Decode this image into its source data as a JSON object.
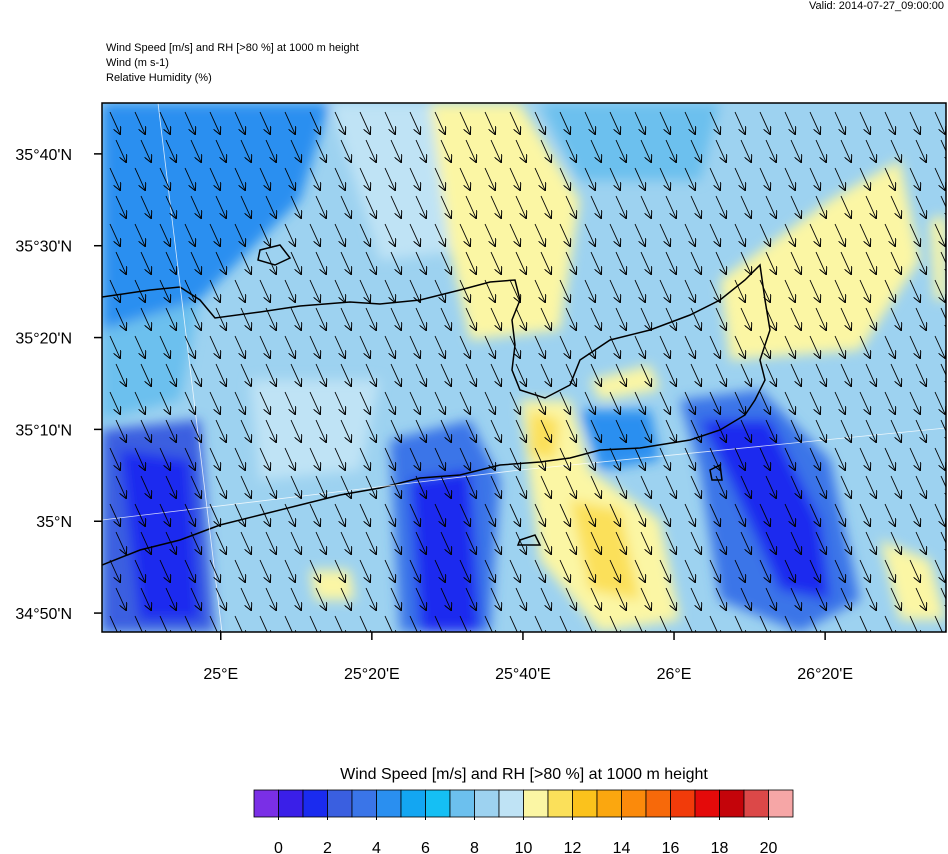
{
  "header": {
    "valid": "Valid: 2014-07-27_09:00:00",
    "lines": [
      "Wind Speed [m/s] and RH [>80 %] at 1000 m height",
      "Wind   (m s-1)",
      "Relative Humidity   (%)"
    ]
  },
  "map": {
    "xlim": [
      24.738,
      26.6
    ],
    "ylim": [
      34.799,
      35.759
    ],
    "xticks": [
      {
        "value": 25,
        "label": "25°E"
      },
      {
        "value": 25.333333,
        "label": "25°20'E"
      },
      {
        "value": 25.666667,
        "label": "25°40'E"
      },
      {
        "value": 26,
        "label": "26°E"
      },
      {
        "value": 26.333333,
        "label": "26°20'E"
      }
    ],
    "yticks": [
      {
        "value": 35.666667,
        "label": "35°40'N"
      },
      {
        "value": 35.5,
        "label": "35°30'N"
      },
      {
        "value": 35.333333,
        "label": "35°20'N"
      },
      {
        "value": 35.166667,
        "label": "35°10'N"
      },
      {
        "value": 35,
        "label": "35°N"
      },
      {
        "value": 34.833333,
        "label": "34°50'N"
      }
    ]
  },
  "colorbar": {
    "title": "Wind Speed [m/s] and RH [>80 %] at 1000 m height",
    "lim": [
      -1,
      21
    ],
    "ticks": [
      0,
      2,
      4,
      6,
      8,
      10,
      12,
      14,
      16,
      18,
      20
    ],
    "colors": [
      "#7a2fe6",
      "#3a1fe8",
      "#1a2bef",
      "#3a5fe0",
      "#3a75e8",
      "#2a8ff0",
      "#13a6f2",
      "#15bff4",
      "#6cc0ee",
      "#9dd2f0",
      "#bfe3f5",
      "#fbf6a4",
      "#fbe05a",
      "#fbc21c",
      "#fba70f",
      "#fb8a0b",
      "#f7690a",
      "#f23b0a",
      "#e40a0a",
      "#c4040a",
      "#dc4848",
      "#f6a6a6"
    ]
  }
}
